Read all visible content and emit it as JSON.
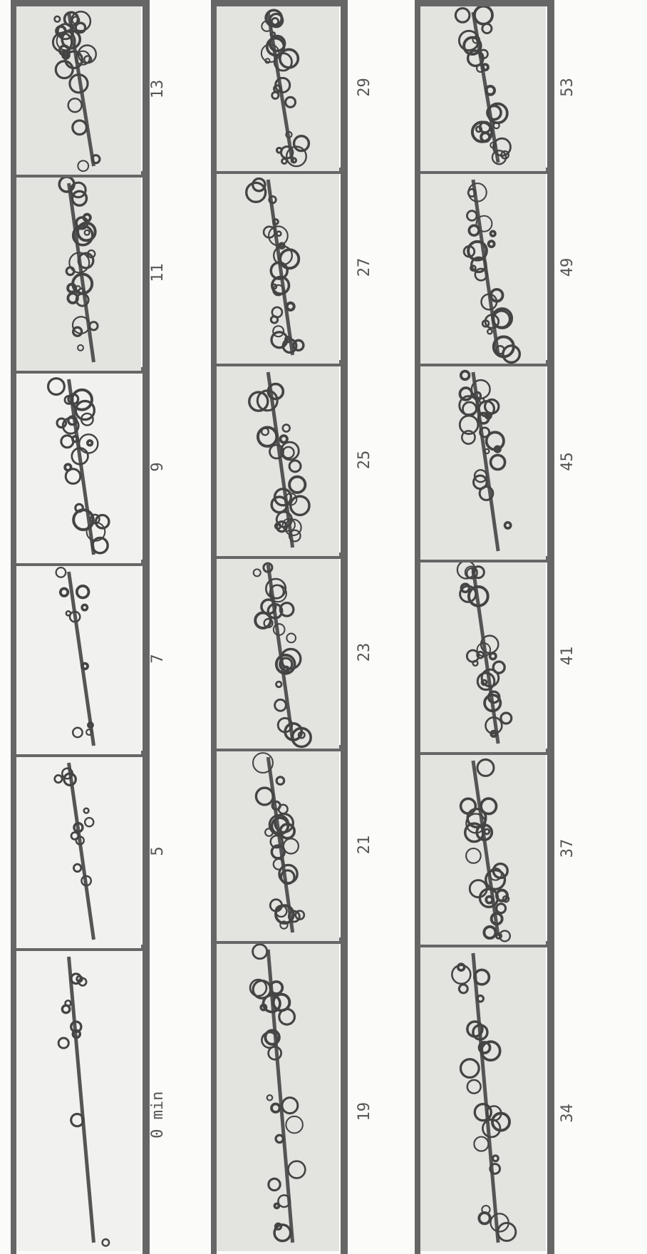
{
  "strips": [
    {
      "frames": [
        {
          "label": "0 min"
        },
        {
          "label": "5"
        },
        {
          "label": "7"
        },
        {
          "label": "9"
        },
        {
          "label": "11"
        },
        {
          "label": "13"
        }
      ]
    },
    {
      "frames": [
        {
          "label": "19"
        },
        {
          "label": "21"
        },
        {
          "label": "23"
        },
        {
          "label": "25"
        },
        {
          "label": "27"
        },
        {
          "label": "29"
        }
      ]
    },
    {
      "frames": [
        {
          "label": "34"
        },
        {
          "label": "37"
        },
        {
          "label": "41"
        },
        {
          "label": "45"
        },
        {
          "label": "49"
        },
        {
          "label": "53"
        }
      ]
    }
  ]
}
